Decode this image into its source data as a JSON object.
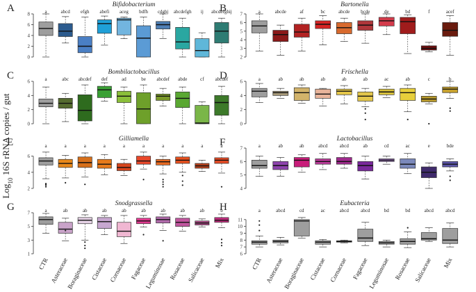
{
  "figure": {
    "ylabel": "Log$$10$$ 16S rRNA copies / gut"
  },
  "y_axis_label": {
    "prefix": "Log",
    "sub": "10",
    "suffix": " 16S rRNA copies / gut"
  },
  "x_categories": [
    "CTR",
    "Asteraceae",
    "Boraginaceae",
    "Cistaceae",
    "Cornaceae",
    "Fagaceae",
    "Leguminosae",
    "Rosaceae",
    "Salicaceae",
    "Mix"
  ],
  "chart_data": [
    {
      "panel": "A",
      "type": "boxplot",
      "title": "Bifidobacterium",
      "ylim": [
        0,
        8
      ],
      "yticks": [
        0,
        2,
        4,
        6,
        8
      ],
      "letters": [
        "a",
        "abcd",
        "efgh",
        "abefi",
        "aceg",
        "bdfh",
        "cdghj",
        "abcdefgh",
        "ij",
        "abcdefghij"
      ],
      "colors": [
        "#9e9e9e",
        "#2c5b8e",
        "#4a7fc4",
        "#1fa0d8",
        "#72b5df",
        "#5b9bd5",
        "#4f7fb5",
        "#2aa7a1",
        "#5fb7d9",
        "#2e7c73"
      ],
      "boxes": [
        {
          "min": 0,
          "q1": 4,
          "median": 5.3,
          "q3": 6.5,
          "max": 8,
          "outliers": []
        },
        {
          "min": 2.6,
          "q1": 3.8,
          "median": 4.8,
          "q3": 6.2,
          "max": 7.5,
          "outliers": []
        },
        {
          "min": 0,
          "q1": 0.8,
          "median": 2.0,
          "q3": 3.8,
          "max": 7.4,
          "outliers": []
        },
        {
          "min": 2.2,
          "q1": 4.4,
          "median": 6.2,
          "q3": 6.9,
          "max": 7.6,
          "outliers": []
        },
        {
          "min": 3.4,
          "q1": 4.1,
          "median": 6.9,
          "q3": 7.2,
          "max": 7.4,
          "outliers": []
        },
        {
          "min": 0,
          "q1": 0,
          "median": 3.5,
          "q3": 5.8,
          "max": 7.4,
          "outliers": []
        },
        {
          "min": 3.4,
          "q1": 5.2,
          "median": 6.0,
          "q3": 6.6,
          "max": 8.0,
          "outliers": []
        },
        {
          "min": 0,
          "q1": 1.5,
          "median": 2.8,
          "q3": 5.5,
          "max": 7.2,
          "outliers": []
        },
        {
          "min": 0,
          "q1": 0,
          "median": 1.2,
          "q3": 3.4,
          "max": 4.5,
          "outliers": []
        },
        {
          "min": 0,
          "q1": 2.6,
          "median": 4.8,
          "q3": 6.4,
          "max": 7.2,
          "outliers": []
        }
      ]
    },
    {
      "panel": "B",
      "type": "boxplot",
      "title": "Bartonella",
      "ylim": [
        2,
        7
      ],
      "yticks": [
        2,
        3,
        4,
        5,
        6,
        7
      ],
      "letters": [
        "a",
        "abcde",
        "af",
        "bc",
        "abcde",
        "bcde",
        "de",
        "bd",
        "f",
        "acef"
      ],
      "colors": [
        "#9e9e9e",
        "#8b1a1a",
        "#b22222",
        "#d62424",
        "#d86a2e",
        "#b0373b",
        "#d33b4b",
        "#a01c1c",
        "#6b0d0d",
        "#6a1b0e"
      ],
      "boxes": [
        {
          "min": 2.7,
          "q1": 4.8,
          "median": 5.6,
          "q3": 6.2,
          "max": 7.0,
          "outliers": []
        },
        {
          "min": 2.2,
          "q1": 3.8,
          "median": 4.6,
          "q3": 5.1,
          "max": 5.7,
          "outliers": []
        },
        {
          "min": 2.7,
          "q1": 4.3,
          "median": 4.9,
          "q3": 5.8,
          "max": 6.5,
          "outliers": []
        },
        {
          "min": 3.4,
          "q1": 5.3,
          "median": 5.8,
          "q3": 6.2,
          "max": 6.8,
          "outliers": []
        },
        {
          "min": 3.8,
          "q1": 4.7,
          "median": 5.4,
          "q3": 6.0,
          "max": 6.5,
          "outliers": []
        },
        {
          "min": 3.6,
          "q1": 5.1,
          "median": 5.7,
          "q3": 6.2,
          "max": 7.0,
          "outliers": []
        },
        {
          "min": 4.6,
          "q1": 5.6,
          "median": 6.2,
          "q3": 6.6,
          "max": 7.0,
          "outliers": []
        },
        {
          "min": 2.4,
          "q1": 4.7,
          "median": 6.1,
          "q3": 6.6,
          "max": 6.9,
          "outliers": []
        },
        {
          "min": 2.6,
          "q1": 2.8,
          "median": 3.0,
          "q3": 3.3,
          "max": 3.7,
          "outliers": []
        },
        {
          "min": 2.2,
          "q1": 4.4,
          "median": 5.1,
          "q3": 6.0,
          "max": 6.8,
          "outliers": []
        }
      ]
    },
    {
      "panel": "C",
      "type": "boxplot",
      "title": "Bombilactobacillus",
      "ylim": [
        0,
        6
      ],
      "yticks": [
        0,
        2,
        4,
        6
      ],
      "letters": [
        "a",
        "abc",
        "abcdef",
        "def",
        "ad",
        "be",
        "abcdef",
        "abde",
        "cf",
        "abcdef"
      ],
      "colors": [
        "#9e9e9e",
        "#556b2f",
        "#2e6b1e",
        "#3aa035",
        "#8bbf3a",
        "#6ea02a",
        "#7b9a2a",
        "#5aa832",
        "#7ab648",
        "#3d7a2a"
      ],
      "boxes": [
        {
          "min": 0,
          "q1": 2.4,
          "median": 2.9,
          "q3": 3.5,
          "max": 5.2,
          "outliers": []
        },
        {
          "min": 0.3,
          "q1": 2.2,
          "median": 2.9,
          "q3": 3.6,
          "max": 4.3,
          "outliers": []
        },
        {
          "min": 0,
          "q1": 0.4,
          "median": 1.9,
          "q3": 4.1,
          "max": 5.5,
          "outliers": []
        },
        {
          "min": 3.2,
          "q1": 3.7,
          "median": 4.8,
          "q3": 5.3,
          "max": 5.8,
          "outliers": []
        },
        {
          "min": 0,
          "q1": 3.0,
          "median": 3.9,
          "q3": 4.6,
          "max": 5.2,
          "outliers": []
        },
        {
          "min": 0,
          "q1": 0,
          "median": 2.1,
          "q3": 4.4,
          "max": 5.5,
          "outliers": []
        },
        {
          "min": 2.5,
          "q1": 3.3,
          "median": 3.9,
          "q3": 4.2,
          "max": 5.0,
          "outliers": []
        },
        {
          "min": 0,
          "q1": 2.3,
          "median": 3.6,
          "q3": 4.5,
          "max": 5.2,
          "outliers": []
        },
        {
          "min": 0,
          "q1": 0,
          "median": 0.1,
          "q3": 2.6,
          "max": 3.1,
          "outliers": []
        },
        {
          "min": 0,
          "q1": 1.2,
          "median": 3.0,
          "q3": 4.0,
          "max": 5.3,
          "outliers": []
        }
      ]
    },
    {
      "panel": "D",
      "type": "boxplot",
      "title": "Frischella",
      "ylim": [
        0,
        6
      ],
      "yticks": [
        0,
        2,
        4,
        6
      ],
      "letters": [
        "a",
        "ab",
        "ab",
        "ab",
        "ab",
        "ab",
        "ac",
        "ab",
        "c",
        "b"
      ],
      "colors": [
        "#9e9e9e",
        "#a89a7a",
        "#d2b36a",
        "#e8b49b",
        "#e6c84a",
        "#e3c64b",
        "#d9c23c",
        "#e7cf3b",
        "#b89a2c",
        "#c8a22e"
      ],
      "boxes": [
        {
          "min": 3.0,
          "q1": 3.8,
          "median": 4.6,
          "q3": 5.0,
          "max": 5.7,
          "outliers": []
        },
        {
          "min": 3.6,
          "q1": 4.0,
          "median": 4.4,
          "q3": 4.6,
          "max": 5.0,
          "outliers": []
        },
        {
          "min": 2.9,
          "q1": 3.3,
          "median": 4.4,
          "q3": 5.1,
          "max": 5.5,
          "outliers": []
        },
        {
          "min": 2.5,
          "q1": 3.6,
          "median": 4.2,
          "q3": 4.9,
          "max": 5.0,
          "outliers": []
        },
        {
          "min": 2.8,
          "q1": 4.1,
          "median": 4.6,
          "q3": 4.9,
          "max": 5.4,
          "outliers": []
        },
        {
          "min": 2.4,
          "q1": 3.2,
          "median": 3.9,
          "q3": 4.5,
          "max": 5.0,
          "outliers": [
            0.6,
            1.5,
            2.1
          ]
        },
        {
          "min": 3.7,
          "q1": 4.1,
          "median": 4.5,
          "q3": 4.9,
          "max": 5.3,
          "outliers": []
        },
        {
          "min": 1.7,
          "q1": 3.3,
          "median": 4.4,
          "q3": 5.0,
          "max": 5.5,
          "outliers": [
            0.6
          ]
        },
        {
          "min": 2.8,
          "q1": 3.1,
          "median": 3.5,
          "q3": 3.9,
          "max": 4.3,
          "outliers": [
            0
          ]
        },
        {
          "min": 3.6,
          "q1": 4.4,
          "median": 4.9,
          "q3": 5.2,
          "max": 6.0,
          "outliers": [
            1.8,
            2.2
          ]
        }
      ]
    },
    {
      "panel": "E",
      "type": "boxplot",
      "title": "Gilliamella",
      "ylim": [
        2,
        7
      ],
      "yticks": [
        2,
        4,
        6
      ],
      "letters": [
        "a",
        "a",
        "a",
        "a",
        "a",
        "a",
        "a",
        "a",
        "a",
        "a"
      ],
      "colors": [
        "#9e9e9e",
        "#e7891c",
        "#d66f1a",
        "#e77a1b",
        "#d6451c",
        "#e8482a",
        "#e76a22",
        "#e7511f",
        "#b9431e",
        "#e64b25"
      ],
      "boxes": [
        {
          "min": 3.2,
          "q1": 4.9,
          "median": 5.4,
          "q3": 5.8,
          "max": 6.5,
          "outliers": [
            2.2,
            2.4,
            2.5,
            2.6
          ]
        },
        {
          "min": 3.3,
          "q1": 4.6,
          "median": 5.1,
          "q3": 5.6,
          "max": 6.1,
          "outliers": [
            2.7
          ]
        },
        {
          "min": 3.4,
          "q1": 4.6,
          "median": 5.2,
          "q3": 5.9,
          "max": 6.4,
          "outliers": [
            2.5
          ]
        },
        {
          "min": 3.7,
          "q1": 4.5,
          "median": 5.0,
          "q3": 5.6,
          "max": 6.2,
          "outliers": []
        },
        {
          "min": 3.6,
          "q1": 4.2,
          "median": 4.6,
          "q3": 5.1,
          "max": 5.6,
          "outliers": []
        },
        {
          "min": 4.4,
          "q1": 5.0,
          "median": 5.4,
          "q3": 6.0,
          "max": 6.5,
          "outliers": [
            3.1
          ]
        },
        {
          "min": 3.8,
          "q1": 4.9,
          "median": 5.3,
          "q3": 5.6,
          "max": 6.0,
          "outliers": [
            3.1,
            2.8,
            2.5,
            2.2
          ]
        },
        {
          "min": 4.0,
          "q1": 5.1,
          "median": 5.5,
          "q3": 5.9,
          "max": 6.4,
          "outliers": [
            3.6,
            2.9,
            2.4
          ]
        },
        {
          "min": 4.1,
          "q1": 4.5,
          "median": 4.8,
          "q3": 5.1,
          "max": 5.5,
          "outliers": []
        },
        {
          "min": 3.9,
          "q1": 5.1,
          "median": 5.5,
          "q3": 5.8,
          "max": 6.5,
          "outliers": [
            2.2
          ]
        }
      ]
    },
    {
      "panel": "F",
      "type": "boxplot",
      "title": "Lactobacillus",
      "ylim": [
        4,
        7
      ],
      "yticks": [
        4,
        5,
        6,
        7
      ],
      "letters": [
        "a",
        "ab",
        "ab",
        "abcd",
        "abcd",
        "ab",
        "cd",
        "ac",
        "e",
        "bde"
      ],
      "colors": [
        "#9e9e9e",
        "#8e44ad",
        "#c81d7a",
        "#bb3a9a",
        "#9e2a8c",
        "#7a2a9c",
        "#9b6fbf",
        "#7b89bb",
        "#3f2a6b",
        "#5d56a8"
      ],
      "boxes": [
        {
          "min": 4.9,
          "q1": 5.5,
          "median": 5.7,
          "q3": 6.1,
          "max": 6.4,
          "outliers": []
        },
        {
          "min": 4.9,
          "q1": 5.4,
          "median": 5.7,
          "q3": 6.0,
          "max": 6.3,
          "outliers": []
        },
        {
          "min": 5.2,
          "q1": 5.6,
          "median": 6.1,
          "q3": 6.3,
          "max": 6.5,
          "outliers": []
        },
        {
          "min": 5.4,
          "q1": 5.8,
          "median": 6.0,
          "q3": 6.2,
          "max": 6.6,
          "outliers": []
        },
        {
          "min": 5.5,
          "q1": 5.8,
          "median": 6.0,
          "q3": 6.3,
          "max": 6.6,
          "outliers": []
        },
        {
          "min": 4.7,
          "q1": 5.3,
          "median": 5.7,
          "q3": 6.0,
          "max": 6.4,
          "outliers": []
        },
        {
          "min": 5.8,
          "q1": 6.0,
          "median": 6.1,
          "q3": 6.2,
          "max": 6.4,
          "outliers": []
        },
        {
          "min": 5.1,
          "q1": 5.5,
          "median": 5.8,
          "q3": 6.2,
          "max": 6.6,
          "outliers": []
        },
        {
          "min": 4.0,
          "q1": 4.8,
          "median": 5.2,
          "q3": 5.6,
          "max": 5.9,
          "outliers": []
        },
        {
          "min": 5.3,
          "q1": 5.6,
          "median": 5.8,
          "q3": 6.0,
          "max": 6.2,
          "outliers": [
            4.9,
            4.6
          ]
        }
      ]
    },
    {
      "panel": "G",
      "type": "boxplot",
      "title": "Snodgrassella",
      "ylim": [
        1,
        7
      ],
      "yticks": [
        1,
        3,
        5,
        7
      ],
      "letters": [
        "a",
        "ab",
        "ab",
        "ab",
        "ab",
        "ab",
        "ab",
        "ab",
        "ab",
        "b"
      ],
      "colors": [
        "#9e9e9e",
        "#c9a3c9",
        "#e6d2e6",
        "#c7a7d0",
        "#f0b7d2",
        "#e23a91",
        "#b06bab",
        "#c2569f",
        "#b04e8a",
        "#c22c7e"
      ],
      "boxes": [
        {
          "min": 4.0,
          "q1": 5.3,
          "median": 6.0,
          "q3": 6.4,
          "max": 6.9,
          "outliers": []
        },
        {
          "min": 2.9,
          "q1": 4.0,
          "median": 4.6,
          "q3": 5.6,
          "max": 6.2,
          "outliers": [
            4.4
          ]
        },
        {
          "min": 3.0,
          "q1": 5.4,
          "median": 5.9,
          "q3": 6.3,
          "max": 6.7,
          "outliers": [
            2.7,
            2.2,
            1.8
          ]
        },
        {
          "min": 3.8,
          "q1": 4.7,
          "median": 5.7,
          "q3": 6.3,
          "max": 6.6,
          "outliers": []
        },
        {
          "min": 2.5,
          "q1": 3.5,
          "median": 4.3,
          "q3": 5.6,
          "max": 6.6,
          "outliers": []
        },
        {
          "min": 4.9,
          "q1": 5.4,
          "median": 5.8,
          "q3": 6.2,
          "max": 6.6,
          "outliers": [
            3.8
          ]
        },
        {
          "min": 4.4,
          "q1": 5.5,
          "median": 6.0,
          "q3": 6.4,
          "max": 6.8,
          "outliers": [
            2.9
          ]
        },
        {
          "min": 4.3,
          "q1": 5.0,
          "median": 5.6,
          "q3": 6.2,
          "max": 6.6,
          "outliers": []
        },
        {
          "min": 4.9,
          "q1": 5.2,
          "median": 5.5,
          "q3": 5.8,
          "max": 6.1,
          "outliers": []
        },
        {
          "min": 4.8,
          "q1": 5.6,
          "median": 5.9,
          "q3": 6.3,
          "max": 6.8,
          "outliers": [
            3.1,
            2.6,
            2.2
          ]
        }
      ]
    },
    {
      "panel": "H",
      "type": "boxplot",
      "title": "Eubacteria",
      "ylim": [
        6,
        12
      ],
      "yticks": [
        6,
        7,
        8,
        9,
        10,
        11
      ],
      "letters": [
        "a",
        "abcd",
        "cd",
        "ac",
        "abcd",
        "abcd",
        "bd",
        "bd",
        "abcd",
        "abcd"
      ],
      "colors": [
        "#9e9e9e",
        "#9e9e9e",
        "#9e9e9e",
        "#9e9e9e",
        "#9e9e9e",
        "#9e9e9e",
        "#9e9e9e",
        "#9e9e9e",
        "#9e9e9e",
        "#9e9e9e"
      ],
      "boxes": [
        {
          "min": 7.0,
          "q1": 7.4,
          "median": 7.7,
          "q3": 7.9,
          "max": 8.6,
          "outliers": [
            10.8,
            10.2,
            9.4
          ]
        },
        {
          "min": 7.3,
          "q1": 7.6,
          "median": 7.8,
          "q3": 8.0,
          "max": 8.4,
          "outliers": []
        },
        {
          "min": 8.3,
          "q1": 8.6,
          "median": 10.8,
          "q3": 11.0,
          "max": 11.3,
          "outliers": []
        },
        {
          "min": 7.0,
          "q1": 7.4,
          "median": 7.7,
          "q3": 7.9,
          "max": 8.1,
          "outliers": []
        },
        {
          "min": 7.6,
          "q1": 7.7,
          "median": 7.8,
          "q3": 7.9,
          "max": 8.0,
          "outliers": []
        },
        {
          "min": 7.2,
          "q1": 7.8,
          "median": 8.3,
          "q3": 9.6,
          "max": 10.6,
          "outliers": []
        },
        {
          "min": 7.0,
          "q1": 7.4,
          "median": 7.6,
          "q3": 7.8,
          "max": 8.0,
          "outliers": []
        },
        {
          "min": 6.9,
          "q1": 7.4,
          "median": 7.8,
          "q3": 8.2,
          "max": 9.2,
          "outliers": [
            9.8
          ]
        },
        {
          "min": 7.8,
          "q1": 8.0,
          "median": 8.2,
          "q3": 9.1,
          "max": 9.8,
          "outliers": []
        },
        {
          "min": 7.0,
          "q1": 7.5,
          "median": 8.0,
          "q3": 9.7,
          "max": 10.5,
          "outliers": []
        }
      ]
    }
  ]
}
